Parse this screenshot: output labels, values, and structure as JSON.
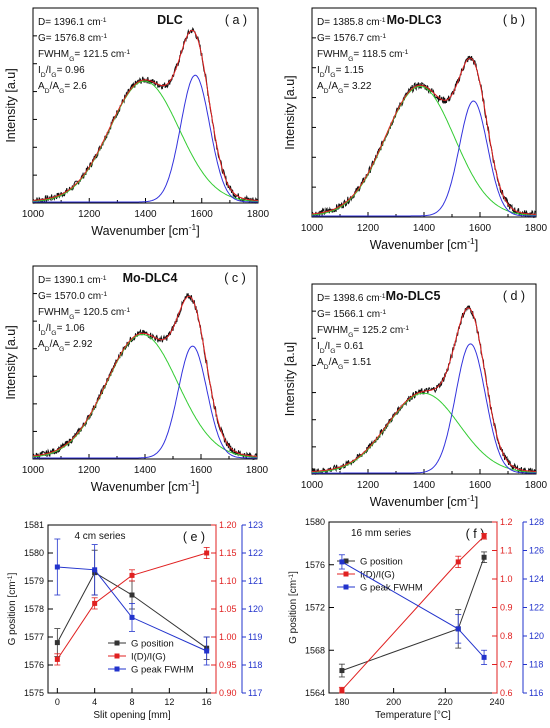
{
  "chart_data": [
    {
      "id": "a",
      "type": "line",
      "panel_label": "( a )",
      "title": "DLC",
      "xlabel": "Wavenumber [cm",
      "xlabel_sup": "-1",
      "xlabel_end": "]",
      "ylabel": "Intensity [a.u]",
      "xlim": [
        1000,
        1800
      ],
      "xticks": [
        "1000",
        "1200",
        "1400",
        "1600",
        "1800"
      ],
      "annotations": [
        {
          "parts": [
            [
              "D= 1396.1 cm",
              ""
            ],
            [
              "-1",
              "sup"
            ]
          ]
        },
        {
          "parts": [
            [
              "G= 1576.8 cm",
              ""
            ],
            [
              "-1",
              "sup"
            ]
          ]
        },
        {
          "parts": [
            [
              "FWHM",
              ""
            ],
            [
              "G",
              "sub"
            ],
            [
              "= 121.5 cm",
              ""
            ],
            [
              "-1",
              "sup"
            ]
          ]
        },
        {
          "parts": [
            [
              "I",
              ""
            ],
            [
              "D",
              "sub"
            ],
            [
              "/I",
              ""
            ],
            [
              "G",
              "sub"
            ],
            [
              "= 0.96",
              ""
            ]
          ]
        },
        {
          "parts": [
            [
              "A",
              ""
            ],
            [
              "D",
              "sub"
            ],
            [
              "/A",
              ""
            ],
            [
              "G",
              "sub"
            ],
            [
              "= 2.6",
              ""
            ]
          ]
        }
      ],
      "peaks": {
        "d_center": 1396.1,
        "d_width": 290,
        "d_height": 0.62,
        "g_center": 1576.8,
        "g_width": 121.5,
        "g_height": 0.65
      },
      "series_colors": {
        "raw": "#111111",
        "fit": "#e02020",
        "d": "#33cc33",
        "g": "#3333dd"
      }
    },
    {
      "id": "b",
      "type": "line",
      "panel_label": "( b )",
      "title": "Mo-DLC3",
      "xlabel": "Wavenumber [cm",
      "xlabel_sup": "-1",
      "xlabel_end": "]",
      "ylabel": "Intensity [a.u]",
      "xlim": [
        1000,
        1800
      ],
      "xticks": [
        "1000",
        "1200",
        "1400",
        "1600",
        "1800"
      ],
      "annotations": [
        {
          "parts": [
            [
              "D= 1385.8 cm",
              ""
            ],
            [
              "-1",
              "sup"
            ]
          ]
        },
        {
          "parts": [
            [
              "G= 1576.7 cm",
              ""
            ],
            [
              "-1",
              "sup"
            ]
          ]
        },
        {
          "parts": [
            [
              "FWHM",
              ""
            ],
            [
              "G",
              "sub"
            ],
            [
              "= 118.5 cm",
              ""
            ],
            [
              "-1",
              "sup"
            ]
          ]
        },
        {
          "parts": [
            [
              "I",
              ""
            ],
            [
              "D",
              "sub"
            ],
            [
              "/I",
              ""
            ],
            [
              "G",
              "sub"
            ],
            [
              "= 1.15",
              ""
            ]
          ]
        },
        {
          "parts": [
            [
              "A",
              ""
            ],
            [
              "D",
              "sub"
            ],
            [
              "/A",
              ""
            ],
            [
              "G",
              "sub"
            ],
            [
              "= 3.22",
              ""
            ]
          ]
        }
      ],
      "peaks": {
        "d_center": 1385.8,
        "d_width": 290,
        "d_height": 0.62,
        "g_center": 1576.7,
        "g_width": 118.5,
        "g_height": 0.55
      },
      "series_colors": {
        "raw": "#111111",
        "fit": "#e02020",
        "d": "#33cc33",
        "g": "#3333dd"
      }
    },
    {
      "id": "c",
      "type": "line",
      "panel_label": "( c )",
      "title": "Mo-DLC4",
      "xlabel": "Wavenumber [cm",
      "xlabel_sup": "-1",
      "xlabel_end": "]",
      "ylabel": "Intensity [a.u]",
      "xlim": [
        1000,
        1800
      ],
      "xticks": [
        "1000",
        "1200",
        "1400",
        "1600",
        "1800"
      ],
      "annotations": [
        {
          "parts": [
            [
              "D= 1390.1 cm",
              ""
            ],
            [
              "-1",
              "sup"
            ]
          ]
        },
        {
          "parts": [
            [
              "G= 1570.0 cm",
              ""
            ],
            [
              "-1",
              "sup"
            ]
          ]
        },
        {
          "parts": [
            [
              "FWHM",
              ""
            ],
            [
              "G",
              "sub"
            ],
            [
              "= 120.5 cm",
              ""
            ],
            [
              "-1",
              "sup"
            ]
          ]
        },
        {
          "parts": [
            [
              "I",
              ""
            ],
            [
              "D",
              "sub"
            ],
            [
              "/I",
              ""
            ],
            [
              "G",
              "sub"
            ],
            [
              "= 1.06",
              ""
            ]
          ]
        },
        {
          "parts": [
            [
              "A",
              ""
            ],
            [
              "D",
              "sub"
            ],
            [
              "/A",
              ""
            ],
            [
              "G",
              "sub"
            ],
            [
              "= 2.92",
              ""
            ]
          ]
        }
      ],
      "peaks": {
        "d_center": 1390.1,
        "d_width": 300,
        "d_height": 0.64,
        "g_center": 1570.0,
        "g_width": 120.5,
        "g_height": 0.58
      },
      "series_colors": {
        "raw": "#111111",
        "fit": "#e02020",
        "d": "#33cc33",
        "g": "#3333dd"
      }
    },
    {
      "id": "d",
      "type": "line",
      "panel_label": "( d )",
      "title": "Mo-DLC5",
      "xlabel": "Wavenumber [cm",
      "xlabel_sup": "-1",
      "xlabel_end": "]",
      "ylabel": "Intensity [a.u]",
      "xlim": [
        1000,
        1800
      ],
      "xticks": [
        "1000",
        "1200",
        "1400",
        "1600",
        "1800"
      ],
      "annotations": [
        {
          "parts": [
            [
              "D= 1398.6 cm",
              ""
            ],
            [
              "-1",
              "sup"
            ]
          ]
        },
        {
          "parts": [
            [
              "G= 1566.1 cm",
              ""
            ],
            [
              "-1",
              "sup"
            ]
          ]
        },
        {
          "parts": [
            [
              "FWHM",
              ""
            ],
            [
              "G",
              "sub"
            ],
            [
              "= 125.2 cm",
              ""
            ],
            [
              "-1",
              "sup"
            ]
          ]
        },
        {
          "parts": [
            [
              "I",
              ""
            ],
            [
              "D",
              "sub"
            ],
            [
              "/I",
              ""
            ],
            [
              "G",
              "sub"
            ],
            [
              "= 0.61",
              ""
            ]
          ]
        },
        {
          "parts": [
            [
              "A",
              ""
            ],
            [
              "D",
              "sub"
            ],
            [
              "/A",
              ""
            ],
            [
              "G",
              "sub"
            ],
            [
              "= 1.51",
              ""
            ]
          ]
        }
      ],
      "peaks": {
        "d_center": 1398.6,
        "d_width": 300,
        "d_height": 0.42,
        "g_center": 1566.1,
        "g_width": 125.2,
        "g_height": 0.68
      },
      "series_colors": {
        "raw": "#111111",
        "fit": "#e02020",
        "d": "#33cc33",
        "g": "#3333dd"
      }
    },
    {
      "id": "e",
      "type": "line",
      "panel_label": "( e )",
      "title": "4 cm series",
      "xlabel": "Slit opening [mm]",
      "ylabel_left": "G position [cm",
      "ylabel_left_sup": "-1",
      "ylabel_left_end": "]",
      "xlim": [
        -1,
        17
      ],
      "xticks": [
        0,
        4,
        8,
        12,
        16
      ],
      "left_axis": {
        "lim": [
          1575,
          1581
        ],
        "ticks": [
          1575,
          1576,
          1577,
          1578,
          1579,
          1580,
          1581
        ]
      },
      "right_axis_red": {
        "lim": [
          0.9,
          1.2
        ],
        "ticks": [
          "0.90",
          "0.95",
          "1.00",
          "1.05",
          "1.10",
          "1.15",
          "1.20"
        ],
        "color": "#e02020"
      },
      "right_axis_blue": {
        "lim": [
          117,
          123
        ],
        "ticks": [
          117,
          118,
          119,
          120,
          121,
          122,
          123
        ],
        "color": "#2233cc"
      },
      "series": [
        {
          "name": "G position",
          "axis": "left",
          "color": "#333333",
          "x": [
            0,
            4,
            8,
            16
          ],
          "y": [
            1576.8,
            1579.3,
            1578.5,
            1576.6
          ],
          "err": [
            0.5,
            0.8,
            0.5,
            0.4
          ]
        },
        {
          "name": "I(D)/I(G)",
          "axis": "red",
          "color": "#e02020",
          "x": [
            0,
            4,
            8,
            16
          ],
          "y": [
            0.96,
            1.06,
            1.11,
            1.15
          ],
          "err": [
            0.01,
            0.01,
            0.01,
            0.01
          ]
        },
        {
          "name": "G peak FWHM",
          "axis": "blue",
          "color": "#2233cc",
          "x": [
            0,
            4,
            8,
            16
          ],
          "y": [
            121.5,
            121.4,
            119.7,
            118.5
          ],
          "err": [
            1.0,
            0.9,
            0.5,
            0.5
          ]
        }
      ]
    },
    {
      "id": "f",
      "type": "line",
      "panel_label": "( f )",
      "title": "16 mm series",
      "xlabel": "Temperature [°C]",
      "ylabel_left": "G position [cm",
      "ylabel_left_sup": "-1",
      "ylabel_left_end": "]",
      "xlim": [
        175,
        240
      ],
      "xticks": [
        180,
        200,
        220,
        240
      ],
      "left_axis": {
        "lim": [
          1564,
          1580
        ],
        "ticks": [
          1564,
          1568,
          1572,
          1576,
          1580
        ]
      },
      "right_axis_red": {
        "lim": [
          0.6,
          1.2
        ],
        "ticks": [
          "0.6",
          "0.7",
          "0.8",
          "0.9",
          "1.0",
          "1.1",
          "1.2"
        ],
        "color": "#e02020"
      },
      "right_axis_blue": {
        "lim": [
          116,
          128
        ],
        "ticks": [
          116,
          118,
          120,
          122,
          124,
          126,
          128
        ],
        "color": "#2233cc"
      },
      "series": [
        {
          "name": "G position",
          "axis": "left",
          "color": "#333333",
          "x": [
            180,
            225,
            235
          ],
          "y": [
            1566.1,
            1570.0,
            1576.7
          ],
          "err": [
            0.6,
            1.8,
            0.5
          ]
        },
        {
          "name": "I(D)/I(G)",
          "axis": "red",
          "color": "#e02020",
          "x": [
            180,
            225,
            235
          ],
          "y": [
            0.61,
            1.06,
            1.15
          ],
          "err": [
            0.01,
            0.02,
            0.01
          ]
        },
        {
          "name": "G peak FWHM",
          "axis": "blue",
          "color": "#2233cc",
          "x": [
            180,
            225,
            235
          ],
          "y": [
            125.2,
            120.5,
            118.5
          ],
          "err": [
            0.5,
            1.0,
            0.5
          ]
        }
      ]
    }
  ]
}
